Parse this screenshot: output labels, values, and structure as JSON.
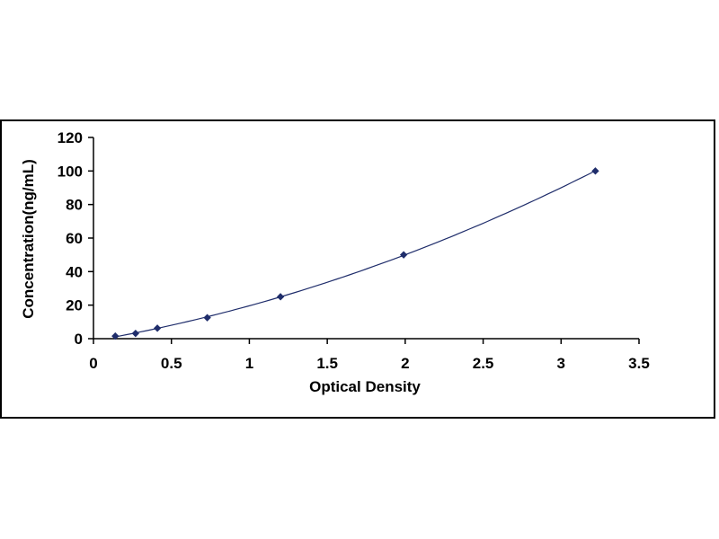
{
  "chart_data": {
    "type": "scatter",
    "title": "",
    "xlabel": "Optical Density",
    "ylabel": "Concentration(ng/mL)",
    "xlim": [
      0,
      3.5
    ],
    "ylim": [
      0,
      120
    ],
    "x_ticks": [
      "0",
      "0.5",
      "1",
      "1.5",
      "2",
      "2.5",
      "3",
      "3.5"
    ],
    "y_ticks": [
      "0",
      "20",
      "40",
      "60",
      "80",
      "100",
      "120"
    ],
    "grid": false,
    "legend": "none",
    "marker": "diamond",
    "marker_color": "#1f2d6b",
    "line_color": "#1f2d6b",
    "series": [
      {
        "points": [
          {
            "x": 0.14,
            "y": 1.56
          },
          {
            "x": 0.27,
            "y": 3.12
          },
          {
            "x": 0.41,
            "y": 6.25
          },
          {
            "x": 0.73,
            "y": 12.5
          },
          {
            "x": 1.2,
            "y": 25
          },
          {
            "x": 1.99,
            "y": 50
          },
          {
            "x": 3.22,
            "y": 100
          }
        ],
        "trendline": "polynomial"
      }
    ]
  }
}
